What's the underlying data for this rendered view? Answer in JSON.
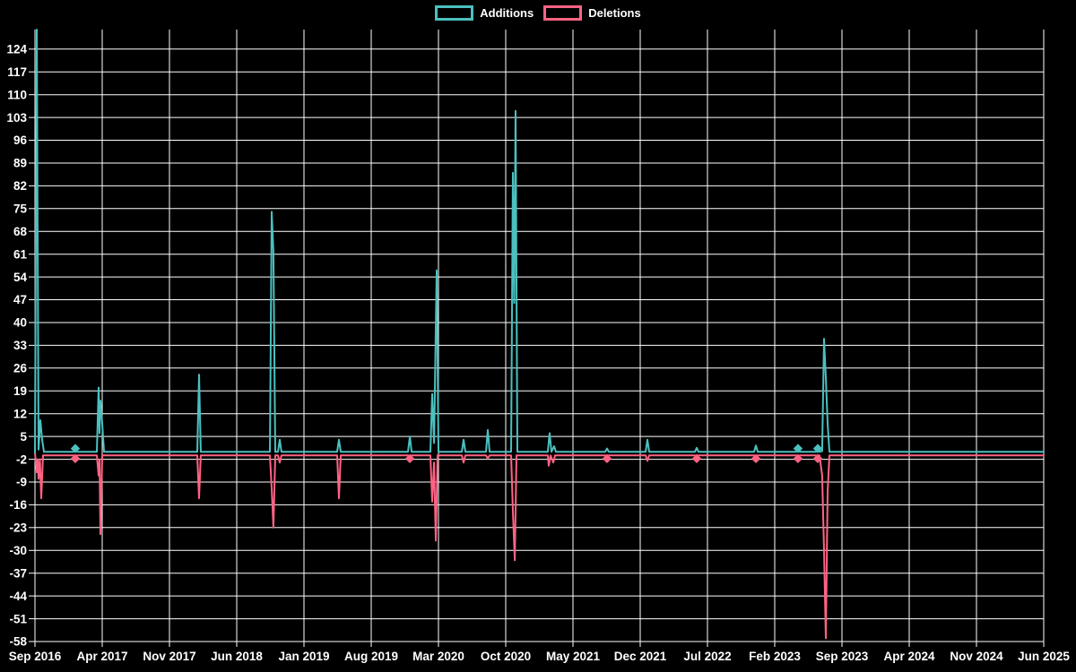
{
  "page": {
    "background": "#000000",
    "grid_color": "#ffffff",
    "text_color": "#ffffff"
  },
  "legend": {
    "items": [
      {
        "label": "Additions",
        "color": "#4bc0c0"
      },
      {
        "label": "Deletions",
        "color": "#ff6384"
      }
    ]
  },
  "chart_data": {
    "type": "line",
    "title": "",
    "xlabel": "",
    "ylabel": "",
    "grid": true,
    "legend_position": "top-center",
    "background": "#000000",
    "x_axis": {
      "start": "Sep 2016",
      "end": "Jun 2025",
      "tick_labels": [
        "Sep 2016",
        "Apr 2017",
        "Nov 2017",
        "Jun 2018",
        "Jan 2019",
        "Aug 2019",
        "Mar 2020",
        "Oct 2020",
        "May 2021",
        "Dec 2021",
        "Jul 2022",
        "Feb 2023",
        "Sep 2023",
        "Apr 2024",
        "Nov 2024",
        "Jun 2025"
      ]
    },
    "y_axis": {
      "min": -58,
      "max": 130,
      "step": 7,
      "ticks": [
        124,
        117,
        110,
        103,
        96,
        89,
        82,
        75,
        68,
        61,
        54,
        47,
        40,
        33,
        26,
        19,
        12,
        5,
        -2,
        -9,
        -16,
        -23,
        -30,
        -37,
        -44,
        -51,
        -58
      ]
    },
    "events": [
      {
        "date": "Sep 2016",
        "additions": 130,
        "deletions": 14
      },
      {
        "date": "Jan 2017",
        "additions": 1,
        "deletions": 1
      },
      {
        "date": "Apr 2017",
        "additions": 20,
        "deletions": 25
      },
      {
        "date": "Feb 2018",
        "additions": 24,
        "deletions": 14
      },
      {
        "date": "Oct 2018",
        "additions": 74,
        "deletions": 23
      },
      {
        "date": "Apr 2019",
        "additions": 4,
        "deletions": 14
      },
      {
        "date": "Dec 2019",
        "additions": 5,
        "deletions": 1
      },
      {
        "date": "Mar 2020",
        "additions": 56,
        "deletions": 27
      },
      {
        "date": "May 2020",
        "additions": 4,
        "deletions": 3
      },
      {
        "date": "Aug 2020",
        "additions": 7,
        "deletions": 1
      },
      {
        "date": "Oct 2020",
        "additions": 105,
        "deletions": 33
      },
      {
        "date": "Feb 2021",
        "additions": 6,
        "deletions": 4
      },
      {
        "date": "Aug 2021",
        "additions": 1,
        "deletions": 1
      },
      {
        "date": "Dec 2021",
        "additions": 4,
        "deletions": 2
      },
      {
        "date": "Jun 2022",
        "additions": 2,
        "deletions": 1
      },
      {
        "date": "Dec 2022",
        "additions": 2,
        "deletions": 1
      },
      {
        "date": "Apr 2023",
        "additions": 1,
        "deletions": 1
      },
      {
        "date": "Jun 2023",
        "additions": 1,
        "deletions": 1
      },
      {
        "date": "Jul 2023",
        "additions": 35,
        "deletions": 57
      }
    ],
    "series": [
      {
        "name": "Deletions",
        "color": "#ff6384",
        "points": [
          [
            0,
            0
          ],
          [
            0.0018,
            -6
          ],
          [
            0.0027,
            -2
          ],
          [
            0.0036,
            -8
          ],
          [
            0.0049,
            -2
          ],
          [
            0.0062,
            -14
          ],
          [
            0.008,
            -0.8
          ],
          [
            0.0382,
            -0.8
          ],
          [
            0.04,
            -1.8
          ],
          [
            0.0418,
            -0.8
          ],
          [
            0.0613,
            -0.8
          ],
          [
            0.0631,
            -7
          ],
          [
            0.064,
            -2
          ],
          [
            0.0649,
            -25
          ],
          [
            0.0667,
            -0.8
          ],
          [
            0.1609,
            -0.8
          ],
          [
            0.1627,
            -14
          ],
          [
            0.1644,
            -0.8
          ],
          [
            0.2329,
            -0.8
          ],
          [
            0.2347,
            -11
          ],
          [
            0.2364,
            -23
          ],
          [
            0.2382,
            -0.8
          ],
          [
            0.2409,
            -0.8
          ],
          [
            0.2427,
            -3
          ],
          [
            0.2444,
            -0.8
          ],
          [
            0.2996,
            -0.8
          ],
          [
            0.3013,
            -14
          ],
          [
            0.3031,
            -0.8
          ],
          [
            0.3698,
            -0.8
          ],
          [
            0.3716,
            -1.8
          ],
          [
            0.3733,
            -0.8
          ],
          [
            0.392,
            -0.8
          ],
          [
            0.3938,
            -15
          ],
          [
            0.3956,
            -3
          ],
          [
            0.3973,
            -27
          ],
          [
            0.3991,
            -0.8
          ],
          [
            0.4231,
            -0.8
          ],
          [
            0.4249,
            -3
          ],
          [
            0.4267,
            -0.8
          ],
          [
            0.4471,
            -0.8
          ],
          [
            0.4489,
            -1.8
          ],
          [
            0.4507,
            -0.8
          ],
          [
            0.472,
            -0.8
          ],
          [
            0.4738,
            -18
          ],
          [
            0.4756,
            -33
          ],
          [
            0.4773,
            -0.8
          ],
          [
            0.5084,
            -0.8
          ],
          [
            0.5093,
            -4
          ],
          [
            0.5111,
            -0.8
          ],
          [
            0.5138,
            -3
          ],
          [
            0.5156,
            -0.8
          ],
          [
            0.5653,
            -0.8
          ],
          [
            0.5671,
            -1.8
          ],
          [
            0.5689,
            -0.8
          ],
          [
            0.6053,
            -0.8
          ],
          [
            0.6071,
            -2.5
          ],
          [
            0.6089,
            -0.8
          ],
          [
            0.6542,
            -0.8
          ],
          [
            0.656,
            -1.8
          ],
          [
            0.6578,
            -0.8
          ],
          [
            0.7129,
            -0.8
          ],
          [
            0.7147,
            -1.8
          ],
          [
            0.7164,
            -0.8
          ],
          [
            0.7547,
            -0.8
          ],
          [
            0.7564,
            -1.8
          ],
          [
            0.7582,
            -0.8
          ],
          [
            0.7742,
            -0.8
          ],
          [
            0.776,
            -1.8
          ],
          [
            0.7778,
            -0.8
          ],
          [
            0.7804,
            -7
          ],
          [
            0.7822,
            -30
          ],
          [
            0.784,
            -57
          ],
          [
            0.7858,
            -12
          ],
          [
            0.7876,
            -0.8
          ],
          [
            1,
            -0.8
          ]
        ],
        "markers": [
          [
            0.04,
            -1.8
          ],
          [
            0.3716,
            -1.8
          ],
          [
            0.5671,
            -1.8
          ],
          [
            0.656,
            -1.8
          ],
          [
            0.7147,
            -1.8
          ],
          [
            0.7564,
            -1.8
          ],
          [
            0.776,
            -1.8
          ]
        ]
      },
      {
        "name": "Additions",
        "color": "#4bc0c0",
        "points": [
          [
            0,
            0
          ],
          [
            0.0018,
            130
          ],
          [
            0.0036,
            1
          ],
          [
            0.0053,
            10
          ],
          [
            0.0071,
            4
          ],
          [
            0.0089,
            0.3
          ],
          [
            0.0382,
            0.3
          ],
          [
            0.04,
            1.3
          ],
          [
            0.0418,
            0.3
          ],
          [
            0.0613,
            0.3
          ],
          [
            0.0631,
            20
          ],
          [
            0.064,
            6
          ],
          [
            0.0649,
            16
          ],
          [
            0.0667,
            9
          ],
          [
            0.0684,
            0.3
          ],
          [
            0.1609,
            0.3
          ],
          [
            0.1627,
            24
          ],
          [
            0.1644,
            0.3
          ],
          [
            0.2329,
            0.3
          ],
          [
            0.2347,
            74
          ],
          [
            0.2364,
            62
          ],
          [
            0.2382,
            0.3
          ],
          [
            0.2409,
            0.3
          ],
          [
            0.2427,
            4
          ],
          [
            0.2444,
            0.3
          ],
          [
            0.2996,
            0.3
          ],
          [
            0.3013,
            4
          ],
          [
            0.3031,
            0.3
          ],
          [
            0.3698,
            0.3
          ],
          [
            0.3716,
            5
          ],
          [
            0.3733,
            0.3
          ],
          [
            0.392,
            0.3
          ],
          [
            0.3938,
            18
          ],
          [
            0.3956,
            3
          ],
          [
            0.3982,
            56
          ],
          [
            0.4,
            0.3
          ],
          [
            0.4231,
            0.3
          ],
          [
            0.4249,
            4
          ],
          [
            0.4267,
            0.3
          ],
          [
            0.4471,
            0.3
          ],
          [
            0.4489,
            7
          ],
          [
            0.4507,
            0.3
          ],
          [
            0.472,
            0.3
          ],
          [
            0.4738,
            86
          ],
          [
            0.4751,
            46
          ],
          [
            0.4764,
            105
          ],
          [
            0.4782,
            0.3
          ],
          [
            0.5084,
            0.3
          ],
          [
            0.5102,
            6
          ],
          [
            0.512,
            0.3
          ],
          [
            0.5147,
            2
          ],
          [
            0.5164,
            0.3
          ],
          [
            0.5653,
            0.3
          ],
          [
            0.5671,
            1.3
          ],
          [
            0.5689,
            0.3
          ],
          [
            0.6053,
            0.3
          ],
          [
            0.6071,
            4
          ],
          [
            0.6089,
            0.3
          ],
          [
            0.6542,
            0.3
          ],
          [
            0.656,
            1.5
          ],
          [
            0.6578,
            0.3
          ],
          [
            0.7129,
            0.3
          ],
          [
            0.7147,
            2.2
          ],
          [
            0.7164,
            0.3
          ],
          [
            0.7547,
            0.3
          ],
          [
            0.7564,
            1.3
          ],
          [
            0.7582,
            0.3
          ],
          [
            0.7742,
            0.3
          ],
          [
            0.776,
            1.3
          ],
          [
            0.7778,
            0.3
          ],
          [
            0.7804,
            0.5
          ],
          [
            0.7822,
            35
          ],
          [
            0.784,
            23
          ],
          [
            0.7858,
            9
          ],
          [
            0.7876,
            0.3
          ],
          [
            1,
            0.3
          ]
        ],
        "markers": [
          [
            0.04,
            1.3
          ],
          [
            0.7564,
            1.3
          ],
          [
            0.776,
            1.3
          ]
        ]
      }
    ]
  }
}
